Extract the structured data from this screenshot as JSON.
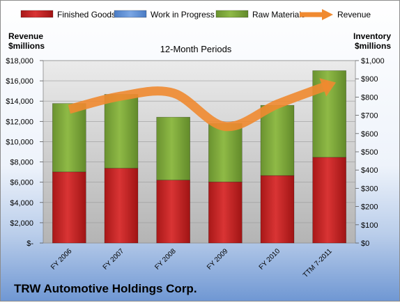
{
  "chart_data": {
    "type": "bar",
    "title": "12-Month Periods",
    "company": "TRW Automotive Holdings Corp.",
    "left_axis_title": [
      "Revenue",
      "$millions"
    ],
    "right_axis_title": [
      "Inventory",
      "$millions"
    ],
    "categories": [
      "FY 2006",
      "FY 2007",
      "FY 2008",
      "FY 2009",
      "FY 2010",
      "TTM 7-2011"
    ],
    "left_ticks": [
      "$-",
      "$2,000",
      "$4,000",
      "$6,000",
      "$8,000",
      "$10,000",
      "$12,000",
      "$14,000",
      "$16,000",
      "$18,000"
    ],
    "right_ticks": [
      "$0",
      "$100",
      "$200",
      "$300",
      "$400",
      "$500",
      "$600",
      "$700",
      "$800",
      "$900",
      "$1,000"
    ],
    "left_ylim": [
      0,
      18000
    ],
    "right_ylim": [
      0,
      1000
    ],
    "legend": [
      {
        "name": "Finished Goods",
        "color": "#cc2a2a",
        "kind": "box"
      },
      {
        "name": "Work in Progress",
        "color": "#5b8fd6",
        "kind": "box"
      },
      {
        "name": "Raw Materials",
        "color": "#86b03c",
        "kind": "box"
      },
      {
        "name": "Revenue",
        "color": "#f08a30",
        "kind": "arrow"
      }
    ],
    "series": [
      {
        "name": "Finished Goods",
        "axis": "right",
        "color": "#cc2a2a",
        "values": [
          390,
          410,
          345,
          335,
          370,
          470
        ]
      },
      {
        "name": "Work in Progress",
        "axis": "right",
        "color": "#5b8fd6",
        "values": [
          0,
          0,
          0,
          0,
          0,
          0
        ]
      },
      {
        "name": "Raw Materials",
        "axis": "right",
        "color": "#86b03c",
        "values": [
          375,
          405,
          345,
          320,
          385,
          475
        ]
      },
      {
        "name": "Revenue",
        "axis": "left",
        "color": "#f08a30",
        "values": [
          13200,
          14500,
          14800,
          11500,
          13700,
          15600
        ]
      }
    ]
  }
}
